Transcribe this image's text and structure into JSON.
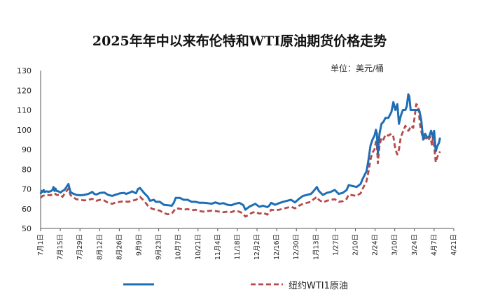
{
  "chart_data": {
    "type": "line",
    "title": "2025年年中以来布伦特和WTI原油期货价格走势",
    "unit": "单位：美元/桶",
    "ylim": [
      50,
      130
    ],
    "yticks": [
      50,
      60,
      70,
      80,
      90,
      100,
      110,
      120,
      130
    ],
    "x_tick_labels": [
      "7月1日",
      "7月15日",
      "7月29日",
      "8月12日",
      "8月26日",
      "9月9日",
      "9月23日",
      "10月7日",
      "10/21日",
      "11月4日",
      "11/18日",
      "12月2日",
      "12/16日",
      "12/30日",
      "1月13日",
      "1/27日",
      "2/10日",
      "2/24日",
      "3/10日",
      "3/24日",
      "4月7日",
      "4/21日"
    ],
    "series": [
      {
        "name": "",
        "color": "#1f6eb5",
        "style": "solid",
        "points": [
          [
            0,
            67.5
          ],
          [
            0.5,
            69
          ],
          [
            1,
            68.5
          ],
          [
            1.5,
            69.5
          ],
          [
            2,
            68.5
          ],
          [
            3,
            68.8
          ],
          [
            4,
            68.6
          ],
          [
            5,
            68.8
          ],
          [
            6,
            69.5
          ],
          [
            6.5,
            71
          ],
          [
            7,
            69
          ],
          [
            7.5,
            70.2
          ],
          [
            8,
            69
          ],
          [
            9,
            68.8
          ],
          [
            10,
            68.2
          ],
          [
            11,
            69
          ],
          [
            12,
            69.5
          ],
          [
            14,
            72.5
          ],
          [
            15,
            68.5
          ],
          [
            16,
            67.8
          ],
          [
            18,
            67
          ],
          [
            20,
            66.8
          ],
          [
            22,
            67
          ],
          [
            24,
            67.5
          ],
          [
            26,
            68.5
          ],
          [
            27,
            67.5
          ],
          [
            28,
            67.2
          ],
          [
            30,
            68
          ],
          [
            32,
            68.2
          ],
          [
            34,
            67
          ],
          [
            36,
            66.5
          ],
          [
            38,
            67.2
          ],
          [
            40,
            67.8
          ],
          [
            42,
            68
          ],
          [
            43,
            67.5
          ],
          [
            45,
            68.2
          ],
          [
            46,
            68.8
          ],
          [
            48,
            67.8
          ],
          [
            49,
            70
          ],
          [
            50,
            70.5
          ],
          [
            52,
            68
          ],
          [
            54,
            66
          ],
          [
            55,
            64
          ],
          [
            57,
            64.5
          ],
          [
            58,
            63.5
          ],
          [
            60,
            63.5
          ],
          [
            62,
            62
          ],
          [
            64,
            61.8
          ],
          [
            66,
            61.5
          ],
          [
            67,
            63
          ],
          [
            68,
            65.5
          ],
          [
            70,
            65.5
          ],
          [
            71,
            65
          ],
          [
            72,
            64.5
          ],
          [
            74,
            64.5
          ],
          [
            76,
            63.5
          ],
          [
            78,
            63.5
          ],
          [
            80,
            63
          ],
          [
            82,
            63
          ],
          [
            84,
            62.8
          ],
          [
            86,
            62.5
          ],
          [
            88,
            63.2
          ],
          [
            90,
            62.5
          ],
          [
            92,
            62.8
          ],
          [
            94,
            62
          ],
          [
            96,
            61.8
          ],
          [
            98,
            62.5
          ],
          [
            100,
            63
          ],
          [
            102,
            61.8
          ],
          [
            103,
            59.5
          ],
          [
            105,
            61
          ],
          [
            106,
            61.5
          ],
          [
            108,
            62.5
          ],
          [
            110,
            61
          ],
          [
            112,
            61.5
          ],
          [
            114,
            60.8
          ],
          [
            115,
            61.5
          ],
          [
            116,
            63
          ],
          [
            118,
            62
          ],
          [
            120,
            62.8
          ],
          [
            122,
            63.5
          ],
          [
            124,
            64
          ],
          [
            126,
            64.5
          ],
          [
            128,
            63.2
          ],
          [
            130,
            65
          ],
          [
            132,
            66.5
          ],
          [
            134,
            67
          ],
          [
            136,
            67.5
          ],
          [
            137,
            68.5
          ],
          [
            139,
            71
          ],
          [
            140,
            69
          ],
          [
            142,
            67
          ],
          [
            144,
            68
          ],
          [
            146,
            68.5
          ],
          [
            148,
            69.5
          ],
          [
            150,
            67.5
          ],
          [
            152,
            68
          ],
          [
            154,
            69.5
          ],
          [
            155,
            72
          ],
          [
            157,
            71.5
          ],
          [
            159,
            71
          ],
          [
            161,
            72.5
          ],
          [
            162,
            75
          ],
          [
            164,
            79
          ],
          [
            165,
            85
          ],
          [
            166,
            92
          ],
          [
            167,
            95
          ],
          [
            168,
            97
          ],
          [
            168.7,
            100
          ],
          [
            169.2,
            98
          ],
          [
            169.7,
            88
          ],
          [
            170.5,
            98
          ],
          [
            171.5,
            103
          ],
          [
            172.5,
            104
          ],
          [
            173.5,
            106
          ],
          [
            175,
            106
          ],
          [
            176.5,
            109
          ],
          [
            177.5,
            114
          ],
          [
            178.5,
            110
          ],
          [
            179.5,
            113
          ],
          [
            180.3,
            103
          ],
          [
            181.2,
            107
          ],
          [
            182.3,
            110
          ],
          [
            183.5,
            110
          ],
          [
            184.3,
            112
          ],
          [
            185,
            118
          ],
          [
            185.5,
            117
          ],
          [
            186.2,
            110
          ],
          [
            187.5,
            110
          ],
          [
            189,
            110
          ],
          [
            190.5,
            110
          ],
          [
            191.5,
            105
          ],
          [
            192.5,
            95
          ],
          [
            193.5,
            98
          ],
          [
            194.5,
            96
          ],
          [
            195.5,
            96.5
          ],
          [
            196.5,
            99.5
          ],
          [
            197.5,
            96
          ],
          [
            198,
            99.5
          ],
          [
            198.8,
            89
          ],
          [
            199.5,
            91.5
          ],
          [
            200.5,
            93.5
          ],
          [
            201,
            96
          ]
        ]
      },
      {
        "name": "纽约WTI1原油",
        "color": "#b54a4a",
        "style": "dashed",
        "points": [
          [
            0,
            65.5
          ],
          [
            1,
            66.5
          ],
          [
            3,
            67
          ],
          [
            5,
            66.8
          ],
          [
            7,
            67.8
          ],
          [
            8,
            67
          ],
          [
            10,
            67
          ],
          [
            11,
            66
          ],
          [
            12,
            67.5
          ],
          [
            14,
            70.2
          ],
          [
            15,
            67
          ],
          [
            16,
            66
          ],
          [
            18,
            64.8
          ],
          [
            20,
            64.5
          ],
          [
            22,
            64.2
          ],
          [
            24,
            64.5
          ],
          [
            26,
            65
          ],
          [
            28,
            64
          ],
          [
            30,
            64.5
          ],
          [
            32,
            64.2
          ],
          [
            34,
            63
          ],
          [
            36,
            62.5
          ],
          [
            38,
            63.2
          ],
          [
            40,
            63.5
          ],
          [
            42,
            63.8
          ],
          [
            44,
            63.5
          ],
          [
            46,
            64
          ],
          [
            48,
            64.5
          ],
          [
            50,
            66
          ],
          [
            52,
            64
          ],
          [
            54,
            61.5
          ],
          [
            56,
            60
          ],
          [
            58,
            59.5
          ],
          [
            60,
            59
          ],
          [
            62,
            57.8
          ],
          [
            64,
            57.2
          ],
          [
            66,
            57.5
          ],
          [
            68,
            60.2
          ],
          [
            70,
            60
          ],
          [
            72,
            59.5
          ],
          [
            74,
            59.8
          ],
          [
            76,
            59.2
          ],
          [
            78,
            59.5
          ],
          [
            80,
            58.8
          ],
          [
            82,
            58.5
          ],
          [
            84,
            58.8
          ],
          [
            86,
            59
          ],
          [
            88,
            58.8
          ],
          [
            90,
            58.5
          ],
          [
            92,
            58.2
          ],
          [
            94,
            58.5
          ],
          [
            96,
            58.3
          ],
          [
            98,
            59
          ],
          [
            100,
            58.5
          ],
          [
            102,
            57.5
          ],
          [
            103,
            56
          ],
          [
            105,
            57
          ],
          [
            106,
            57.8
          ],
          [
            108,
            58.5
          ],
          [
            110,
            57.5
          ],
          [
            112,
            58
          ],
          [
            114,
            57
          ],
          [
            115,
            57.8
          ],
          [
            116,
            59.5
          ],
          [
            118,
            59.2
          ],
          [
            120,
            59.5
          ],
          [
            122,
            60
          ],
          [
            124,
            60.5
          ],
          [
            126,
            61
          ],
          [
            128,
            60.2
          ],
          [
            130,
            61.5
          ],
          [
            132,
            62.5
          ],
          [
            134,
            63
          ],
          [
            136,
            63.5
          ],
          [
            137,
            64.5
          ],
          [
            139,
            66
          ],
          [
            140,
            64.5
          ],
          [
            142,
            63.2
          ],
          [
            144,
            64
          ],
          [
            146,
            64.5
          ],
          [
            148,
            64.8
          ],
          [
            150,
            63.5
          ],
          [
            152,
            63.8
          ],
          [
            154,
            65
          ],
          [
            155,
            67.2
          ],
          [
            157,
            66.8
          ],
          [
            159,
            66.5
          ],
          [
            161,
            67.8
          ],
          [
            162,
            70
          ],
          [
            164,
            74
          ],
          [
            165,
            79
          ],
          [
            166,
            85
          ],
          [
            167,
            88.5
          ],
          [
            168,
            90
          ],
          [
            168.7,
            94
          ],
          [
            169.2,
            92
          ],
          [
            169.7,
            83
          ],
          [
            170.5,
            92
          ],
          [
            171.5,
            96
          ],
          [
            172.5,
            95
          ],
          [
            173.5,
            97.5
          ],
          [
            175,
            97
          ],
          [
            176.5,
            98
          ],
          [
            177.5,
            96.5
          ],
          [
            178.5,
            90
          ],
          [
            179.5,
            87.5
          ],
          [
            180.3,
            90
          ],
          [
            181.2,
            96
          ],
          [
            182.3,
            99
          ],
          [
            183.5,
            102
          ],
          [
            184.3,
            100.5
          ],
          [
            185,
            99.5
          ],
          [
            185.5,
            100
          ],
          [
            186.2,
            102
          ],
          [
            187.5,
            101
          ],
          [
            189,
            113
          ],
          [
            190,
            112
          ],
          [
            191,
            102
          ],
          [
            192,
            97
          ],
          [
            193,
            95.5
          ],
          [
            194,
            96
          ],
          [
            195,
            94.5
          ],
          [
            196,
            96.5
          ],
          [
            197,
            92
          ],
          [
            197.5,
            97.5
          ],
          [
            198,
            92
          ],
          [
            198.8,
            83.5
          ],
          [
            199.5,
            86
          ],
          [
            200.5,
            88
          ],
          [
            201,
            89
          ]
        ]
      }
    ]
  }
}
